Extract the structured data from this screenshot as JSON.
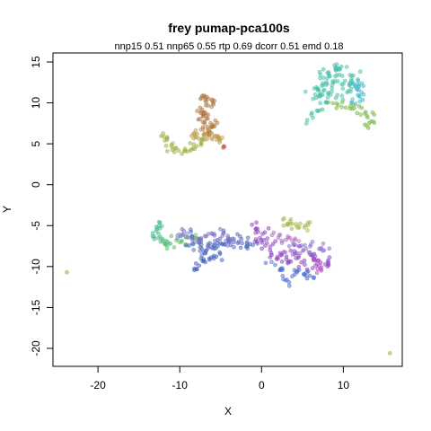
{
  "chart_data": {
    "type": "scatter",
    "title": "frey pumap-pca100s",
    "subtitle": "nnp15 0.51 nnp65 0.55 rtp 0.69 dcorr 0.51 emd 0.18",
    "xlabel": "X",
    "ylabel": "Y",
    "xlim": [
      -25.5,
      17.2
    ],
    "ylim": [
      -22.2,
      16.1
    ],
    "x_ticks": [
      -20,
      -10,
      0,
      10
    ],
    "y_ticks": [
      -20,
      -15,
      -10,
      -5,
      0,
      5,
      10,
      15
    ],
    "grid": false,
    "legend": "none",
    "point_alpha": 0.5,
    "point_radius": 2,
    "clusters": [
      {
        "color": "#b07840",
        "path": [
          [
            -7.2,
            10.3
          ],
          [
            -6.6,
            10.8
          ],
          [
            -6.1,
            9.9
          ],
          [
            -6.9,
            9.2
          ],
          [
            -7.5,
            8.6
          ],
          [
            -6.8,
            8.0
          ],
          [
            -6.2,
            7.4
          ],
          [
            -5.8,
            6.8
          ],
          [
            -6.4,
            6.3
          ],
          [
            -7.0,
            6.8
          ]
        ],
        "spread": 0.35,
        "n": 60
      },
      {
        "color": "#c0a050",
        "path": [
          [
            -8.8,
            5.7
          ],
          [
            -8.0,
            6.1
          ],
          [
            -7.3,
            5.8
          ],
          [
            -6.5,
            6.3
          ],
          [
            -5.9,
            6.0
          ],
          [
            -5.3,
            5.4
          ],
          [
            -4.8,
            4.8
          ]
        ],
        "spread": 0.35,
        "n": 35
      },
      {
        "color": "#9ab040",
        "path": [
          [
            -11.8,
            6.0
          ],
          [
            -11.6,
            5.3
          ],
          [
            -10.9,
            4.5
          ],
          [
            -9.8,
            4.1
          ],
          [
            -8.8,
            4.3
          ],
          [
            -7.8,
            4.9
          ],
          [
            -7.4,
            5.5
          ]
        ],
        "spread": 0.3,
        "n": 35
      },
      {
        "color": "#48c0a8",
        "path": [
          [
            6.6,
            12.3
          ],
          [
            7.8,
            13.6
          ],
          [
            9.2,
            14.2
          ],
          [
            10.6,
            13.9
          ],
          [
            11.4,
            12.6
          ],
          [
            10.3,
            11.4
          ],
          [
            9.0,
            12.4
          ],
          [
            8.0,
            11.2
          ],
          [
            7.0,
            10.9
          ],
          [
            6.6,
            11.8
          ]
        ],
        "spread": 0.6,
        "n": 90
      },
      {
        "color": "#40b8d0",
        "path": [
          [
            10.8,
            12.5
          ],
          [
            11.9,
            11.8
          ],
          [
            12.2,
            10.6
          ],
          [
            11.4,
            10.2
          ]
        ],
        "spread": 0.4,
        "n": 20
      },
      {
        "color": "#78b848",
        "path": [
          [
            8.6,
            10.3
          ],
          [
            9.8,
            9.8
          ],
          [
            10.9,
            9.6
          ],
          [
            12.2,
            9.0
          ],
          [
            13.2,
            8.4
          ],
          [
            13.5,
            7.6
          ],
          [
            12.8,
            7.3
          ]
        ],
        "spread": 0.3,
        "n": 30
      },
      {
        "color": "#40c0a0",
        "path": [
          [
            5.5,
            7.8
          ],
          [
            6.3,
            8.6
          ],
          [
            7.3,
            9.4
          ],
          [
            8.0,
            10.0
          ]
        ],
        "spread": 0.25,
        "n": 12
      },
      {
        "color": "#40b890",
        "path": [
          [
            -13.2,
            -6.2
          ],
          [
            -12.9,
            -5.3
          ],
          [
            -12.4,
            -4.9
          ],
          [
            -12.6,
            -6.4
          ],
          [
            -12.0,
            -6.9
          ],
          [
            -11.2,
            -7.2
          ]
        ],
        "spread": 0.3,
        "n": 22
      },
      {
        "color": "#60c060",
        "path": [
          [
            -12.2,
            -7.3
          ],
          [
            -10.8,
            -7.0
          ],
          [
            -9.8,
            -6.5
          ],
          [
            -8.6,
            -6.7
          ],
          [
            -7.6,
            -7.0
          ]
        ],
        "spread": 0.35,
        "n": 22
      },
      {
        "color": "#5068c0",
        "path": [
          [
            -8.6,
            -6.2
          ],
          [
            -8.0,
            -7.2
          ],
          [
            -7.2,
            -8.2
          ],
          [
            -6.2,
            -7.6
          ],
          [
            -5.2,
            -7.0
          ],
          [
            -4.2,
            -7.1
          ],
          [
            -3.1,
            -6.9
          ],
          [
            -2.1,
            -7.3
          ],
          [
            -1.1,
            -7.6
          ]
        ],
        "spread": 0.45,
        "n": 70
      },
      {
        "color": "#4060c0",
        "path": [
          [
            -8.4,
            -10.6
          ],
          [
            -7.6,
            -9.8
          ],
          [
            -6.8,
            -9.2
          ],
          [
            -6.0,
            -8.9
          ],
          [
            -5.0,
            -8.8
          ]
        ],
        "spread": 0.25,
        "n": 20
      },
      {
        "color": "#8070c8",
        "path": [
          [
            -9.6,
            -6.1
          ],
          [
            -8.8,
            -6.3
          ],
          [
            -8.0,
            -6.4
          ],
          [
            -7.0,
            -6.6
          ],
          [
            -6.0,
            -6.5
          ],
          [
            -5.0,
            -6.4
          ],
          [
            -4.0,
            -6.5
          ],
          [
            -3.0,
            -6.4
          ]
        ],
        "spread": 0.4,
        "n": 30
      },
      {
        "color": "#9040c0",
        "path": [
          [
            -1.0,
            -5.0
          ],
          [
            0.0,
            -6.0
          ],
          [
            0.6,
            -7.0
          ],
          [
            1.2,
            -8.0
          ],
          [
            2.2,
            -8.6
          ],
          [
            3.4,
            -8.8
          ],
          [
            4.6,
            -8.7
          ],
          [
            5.8,
            -9.2
          ],
          [
            7.2,
            -9.6
          ],
          [
            8.2,
            -9.4
          ]
        ],
        "spread": 0.5,
        "n": 70
      },
      {
        "color": "#b04cc0",
        "path": [
          [
            6.4,
            -9.0
          ],
          [
            6.9,
            -9.7
          ],
          [
            7.2,
            -10.2
          ]
        ],
        "spread": 0.25,
        "n": 12
      },
      {
        "color": "#5070d0",
        "path": [
          [
            1.2,
            -9.6
          ],
          [
            2.0,
            -10.0
          ],
          [
            2.6,
            -10.9
          ],
          [
            2.9,
            -11.7
          ],
          [
            3.0,
            -12.2
          ]
        ],
        "spread": 0.3,
        "n": 16
      },
      {
        "color": "#4668c8",
        "path": [
          [
            3.8,
            -10.6
          ],
          [
            4.8,
            -10.8
          ],
          [
            5.7,
            -11.0
          ],
          [
            6.2,
            -11.1
          ]
        ],
        "spread": 0.25,
        "n": 14
      },
      {
        "color": "#9070d0",
        "path": [
          [
            3.0,
            -7.5
          ],
          [
            4.2,
            -7.6
          ],
          [
            5.4,
            -7.9
          ],
          [
            6.6,
            -8.0
          ],
          [
            7.8,
            -7.9
          ]
        ],
        "spread": 0.45,
        "n": 28
      },
      {
        "color": "#a8b850",
        "path": [
          [
            2.6,
            -4.6
          ],
          [
            3.2,
            -5.1
          ],
          [
            3.8,
            -4.6
          ],
          [
            4.4,
            -5.4
          ],
          [
            5.2,
            -5.1
          ],
          [
            5.9,
            -4.9
          ]
        ],
        "spread": 0.3,
        "n": 22
      },
      {
        "color": "#b070c8",
        "path": [
          [
            1.5,
            -6.0
          ],
          [
            2.5,
            -6.6
          ],
          [
            3.5,
            -6.8
          ],
          [
            4.4,
            -6.6
          ]
        ],
        "spread": 0.5,
        "n": 14
      },
      {
        "color": "#8a8ad0",
        "path": [
          [
            -10.4,
            -6.1
          ],
          [
            -9.8,
            -6.3
          ],
          [
            -9.2,
            -6.2
          ]
        ],
        "spread": 0.2,
        "n": 6
      },
      {
        "color": "#78b030",
        "path": [
          [
            -23.8,
            -10.7
          ]
        ],
        "spread": 0.0,
        "n": 1
      },
      {
        "color": "#98b030",
        "path": [
          [
            15.7,
            -20.6
          ]
        ],
        "spread": 0.0,
        "n": 1
      },
      {
        "color": "#c04848",
        "path": [
          [
            -4.6,
            4.6
          ]
        ],
        "spread": 0.1,
        "n": 2
      }
    ]
  }
}
